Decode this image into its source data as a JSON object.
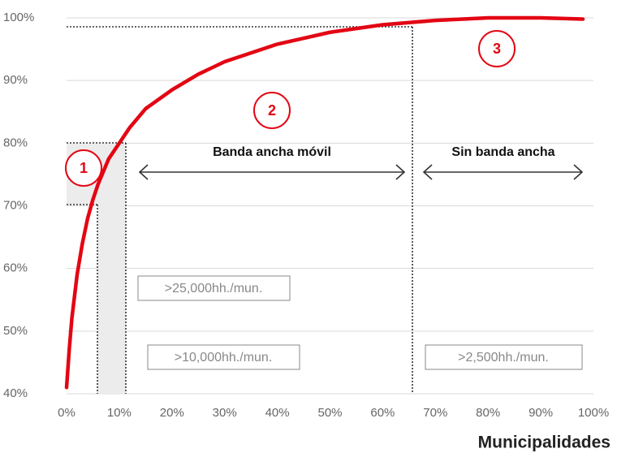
{
  "chart_data": {
    "type": "line",
    "x": [
      0,
      0.5,
      1,
      2,
      3,
      4,
      5,
      6,
      8,
      10,
      12,
      15,
      20,
      25,
      30,
      40,
      50,
      60,
      70,
      80,
      90,
      98
    ],
    "values": [
      41,
      47,
      52,
      59,
      64,
      68,
      71,
      73.5,
      77.5,
      80,
      82.5,
      85.5,
      88.5,
      91,
      93,
      95.8,
      97.7,
      98.9,
      99.6,
      100,
      100,
      99.8
    ],
    "color": "#e30613",
    "xlim": [
      0,
      100
    ],
    "xticks": [
      {
        "value": 0,
        "label": "0%"
      },
      {
        "value": 10,
        "label": "10%"
      },
      {
        "value": 20,
        "label": "20%"
      },
      {
        "value": 30,
        "label": "30%"
      },
      {
        "value": 40,
        "label": "40%"
      },
      {
        "value": 50,
        "label": "50%"
      },
      {
        "value": 60,
        "label": "60%"
      },
      {
        "value": 70,
        "label": "70%"
      },
      {
        "value": 80,
        "label": "80%"
      },
      {
        "value": 90,
        "label": "90%"
      },
      {
        "value": 100,
        "label": "100%"
      }
    ],
    "ylim": [
      40,
      100
    ],
    "yticks": [
      {
        "value": 40,
        "label": "40%"
      },
      {
        "value": 50,
        "label": "50%"
      },
      {
        "value": 60,
        "label": "60%"
      },
      {
        "value": 70,
        "label": "70%"
      },
      {
        "value": 80,
        "label": "80%"
      },
      {
        "value": 90,
        "label": "90%"
      },
      {
        "value": 100,
        "label": "100%"
      }
    ],
    "grid": true,
    "x_label": "Municipalidades",
    "annotations": {
      "markers": [
        "1",
        "2",
        "3"
      ],
      "regions": [
        "Banda ancha móvil",
        "Sin banda ancha"
      ],
      "boxes": [
        ">25,000hh./mun.",
        ">10,000hh./mun.",
        ">2,500hh./mun."
      ]
    }
  }
}
